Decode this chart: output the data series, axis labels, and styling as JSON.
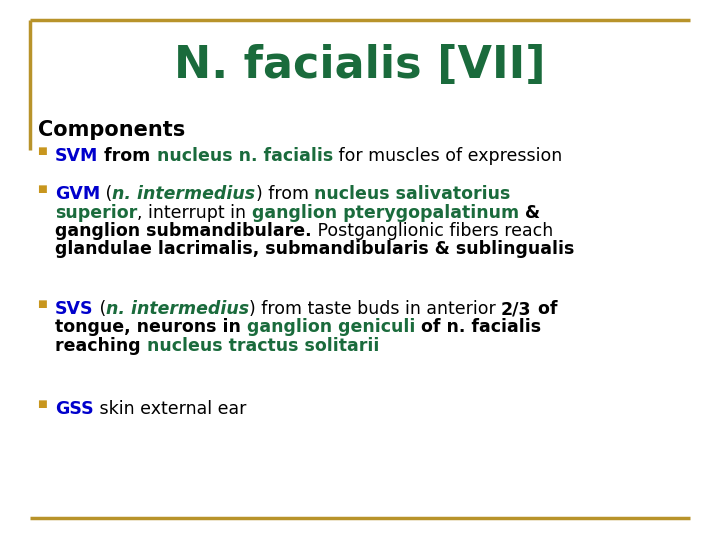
{
  "title": "N. facialis [VII]",
  "title_color": "#1a6b3c",
  "background_color": "#ffffff",
  "border_color": "#b8932a",
  "components_label": "Components",
  "bullet_marker_color": "#c8961e",
  "figsize": [
    7.2,
    5.4
  ],
  "dpi": 100,
  "bullet_lines": [
    [
      [
        {
          "text": "SVM",
          "color": "#0000cc",
          "bold": true,
          "italic": false
        },
        {
          "text": " from ",
          "color": "#000000",
          "bold": true,
          "italic": false
        },
        {
          "text": "nucleus n. facialis",
          "color": "#1a6b3c",
          "bold": true,
          "italic": false
        },
        {
          "text": " for muscles of expression",
          "color": "#000000",
          "bold": false,
          "italic": false
        }
      ]
    ],
    [
      [
        {
          "text": "GVM",
          "color": "#0000cc",
          "bold": true,
          "italic": false
        },
        {
          "text": " (",
          "color": "#000000",
          "bold": false,
          "italic": false
        },
        {
          "text": "n. intermedius",
          "color": "#1a6b3c",
          "bold": true,
          "italic": true
        },
        {
          "text": ") from ",
          "color": "#000000",
          "bold": false,
          "italic": false
        },
        {
          "text": "nucleus salivatorius",
          "color": "#1a6b3c",
          "bold": true,
          "italic": false
        }
      ],
      [
        {
          "text": "superior",
          "color": "#1a6b3c",
          "bold": true,
          "italic": false
        },
        {
          "text": ", interrupt in ",
          "color": "#000000",
          "bold": false,
          "italic": false
        },
        {
          "text": "ganglion pterygopalatinum",
          "color": "#1a6b3c",
          "bold": true,
          "italic": false
        },
        {
          "text": " &",
          "color": "#000000",
          "bold": true,
          "italic": false
        }
      ],
      [
        {
          "text": "ganglion submandibulare.",
          "color": "#000000",
          "bold": true,
          "italic": false
        },
        {
          "text": " Postganglionic fibers reach",
          "color": "#000000",
          "bold": false,
          "italic": false
        }
      ],
      [
        {
          "text": "glandulae lacrimalis, submandibularis & sublingualis",
          "color": "#000000",
          "bold": true,
          "italic": false
        }
      ]
    ],
    [
      [
        {
          "text": "SVS",
          "color": "#0000cc",
          "bold": true,
          "italic": false
        },
        {
          "text": " (",
          "color": "#000000",
          "bold": false,
          "italic": false
        },
        {
          "text": "n. intermedius",
          "color": "#1a6b3c",
          "bold": true,
          "italic": true
        },
        {
          "text": ") from taste buds in anterior ",
          "color": "#000000",
          "bold": false,
          "italic": false
        },
        {
          "text": "2/3",
          "color": "#000000",
          "bold": true,
          "italic": false
        },
        {
          "text": " of",
          "color": "#000000",
          "bold": true,
          "italic": false
        }
      ],
      [
        {
          "text": "tongue, neurons in ",
          "color": "#000000",
          "bold": true,
          "italic": false
        },
        {
          "text": "ganglion geniculi",
          "color": "#1a6b3c",
          "bold": true,
          "italic": false
        },
        {
          "text": " of n. facialis",
          "color": "#000000",
          "bold": true,
          "italic": false
        }
      ],
      [
        {
          "text": "reaching ",
          "color": "#000000",
          "bold": true,
          "italic": false
        },
        {
          "text": "nucleus tractus solitarii",
          "color": "#1a6b3c",
          "bold": true,
          "italic": false
        }
      ]
    ],
    [
      [
        {
          "text": "GSS",
          "color": "#0000cc",
          "bold": true,
          "italic": false
        },
        {
          "text": " skin external ear",
          "color": "#000000",
          "bold": false,
          "italic": false
        }
      ]
    ]
  ]
}
